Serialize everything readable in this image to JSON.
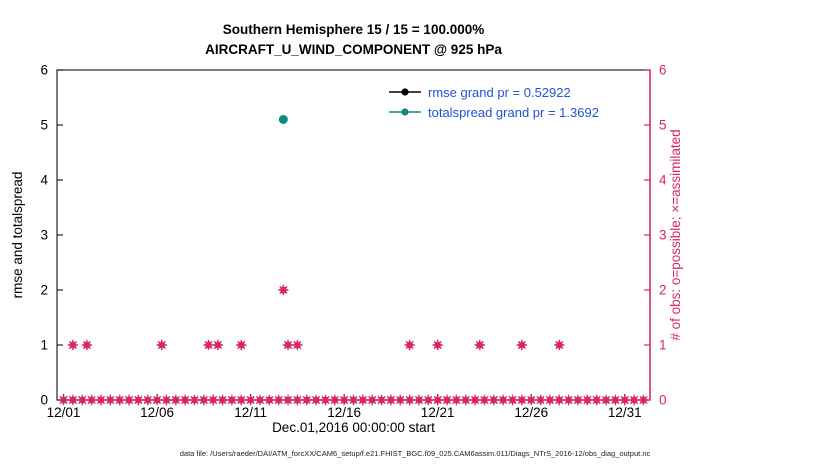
{
  "figure": {
    "title_line1": "Southern Hemisphere 15 / 15 = 100.000%",
    "title_line2": "AIRCRAFT_U_WIND_COMPONENT @ 925 hPa",
    "xlabel": "Dec.01,2016 00:00:00 start",
    "ylabel_left": "rmse and totalspread",
    "ylabel_right": "# of obs: o=possible; ×=assimilated",
    "caption": "data file: /Users/raeder/DAI/ATM_forcXX/CAM6_setup/f.e21.FHIST_BGC.f09_025.CAM6assim.011/Diags_NTrS_2016-12/obs_diag_output.nc"
  },
  "legend": {
    "text_color": "#2353d4",
    "entries": [
      {
        "label": "rmse grand pr = 0.52922",
        "color": "#000000"
      },
      {
        "label": "totalspread grand pr = 1.3692",
        "color": "#0f8a80"
      }
    ]
  },
  "chart_data": {
    "type": "scatter",
    "title": "Southern Hemisphere 15 / 15 = 100.000%",
    "subtitle": "AIRCRAFT_U_WIND_COMPONENT @ 925 hPa",
    "xlabel": "Dec.01,2016 00:00:00 start",
    "ylabel_left": "rmse and totalspread",
    "ylabel_right": "# of obs: o=possible; ×=assimilated",
    "xlim": [
      -0.35,
      31.35
    ],
    "ylim": [
      0,
      6
    ],
    "x_ticks": [
      0,
      5,
      10,
      15,
      20,
      25,
      30
    ],
    "x_tick_labels": [
      "12/01",
      "12/06",
      "12/11",
      "12/16",
      "12/21",
      "12/26",
      "12/31"
    ],
    "y_ticks": [
      0,
      1,
      2,
      3,
      4,
      5,
      6
    ],
    "axis_colors": {
      "left": "#000000",
      "bottom": "#000000",
      "right": "#d92563",
      "box": "#262626"
    },
    "grand_stats": {
      "rmse": 0.52922,
      "totalspread": 1.3692
    },
    "series": [
      {
        "name": "num_obs_possible_and_assimilated",
        "axis": "right",
        "marker": "star-circle",
        "color": "#d92563",
        "x": [
          0,
          0.5,
          1,
          1.5,
          2,
          2.5,
          3,
          3.5,
          4,
          4.5,
          5,
          5.5,
          6,
          6.5,
          7,
          7.5,
          8,
          8.5,
          9,
          9.5,
          10,
          10.5,
          11,
          11.5,
          12,
          12.5,
          13,
          13.5,
          14,
          14.5,
          15,
          15.5,
          16,
          16.5,
          17,
          17.5,
          18,
          18.5,
          19,
          19.5,
          20,
          20.5,
          21,
          21.5,
          22,
          22.5,
          23,
          23.5,
          24,
          24.5,
          25,
          25.5,
          26,
          26.5,
          27,
          27.5,
          28,
          28.5,
          29,
          29.5,
          30,
          30.5,
          31,
          0.5,
          1.25,
          5.25,
          7.75,
          8.25,
          9.5,
          12.0,
          12.5,
          18.5,
          20.0,
          22.25,
          24.5,
          26.5,
          11.75
        ],
        "y": [
          0,
          0,
          0,
          0,
          0,
          0,
          0,
          0,
          0,
          0,
          0,
          0,
          0,
          0,
          0,
          0,
          0,
          0,
          0,
          0,
          0,
          0,
          0,
          0,
          0,
          0,
          0,
          0,
          0,
          0,
          0,
          0,
          0,
          0,
          0,
          0,
          0,
          0,
          0,
          0,
          0,
          0,
          0,
          0,
          0,
          0,
          0,
          0,
          0,
          0,
          0,
          0,
          0,
          0,
          0,
          0,
          0,
          0,
          0,
          0,
          0,
          0,
          0,
          1,
          1,
          1,
          1,
          1,
          1,
          1,
          1,
          1,
          1,
          1,
          1,
          1,
          2
        ]
      },
      {
        "name": "totalspread",
        "axis": "left",
        "marker": "filled-circle",
        "color": "#0f8a80",
        "x": [
          11.75
        ],
        "y": [
          5.1
        ]
      },
      {
        "name": "rmse",
        "axis": "left",
        "marker": "filled-circle",
        "color": "#000000",
        "x": [],
        "y": []
      }
    ]
  }
}
